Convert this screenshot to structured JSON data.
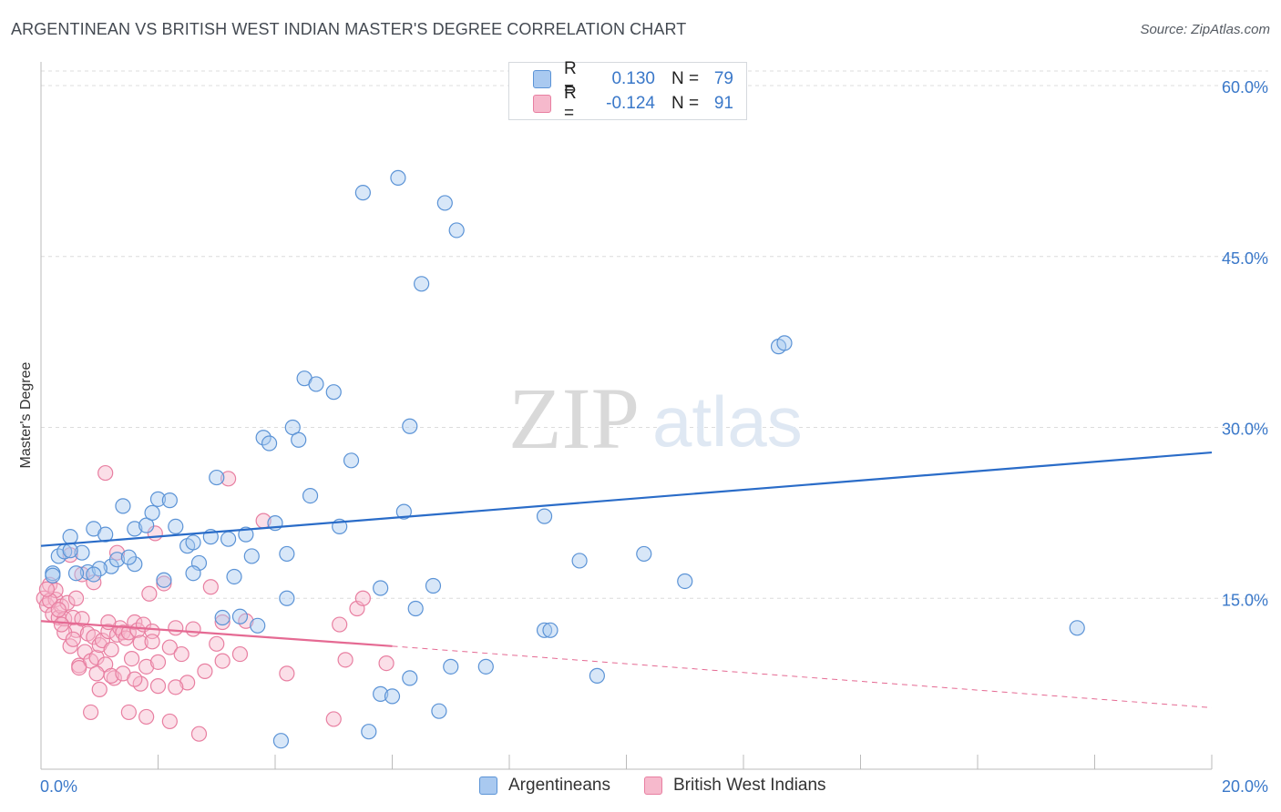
{
  "header": {
    "title": "ARGENTINEAN VS BRITISH WEST INDIAN MASTER'S DEGREE CORRELATION CHART",
    "source": "Source: ZipAtlas.com"
  },
  "watermark": {
    "zip": "ZIP",
    "atlas": "atlas"
  },
  "legend": {
    "rows": [
      {
        "r_label": "R =",
        "r_value": "0.130",
        "n_label": "N =",
        "n_value": "79"
      },
      {
        "r_label": "R =",
        "r_value": "-0.124",
        "n_label": "N =",
        "n_value": "91"
      }
    ]
  },
  "bottom_legend": {
    "a": "Argentineans",
    "b": "British West Indians"
  },
  "colors": {
    "blue_fill": "#a9c9f0",
    "blue_stroke": "#5b93d6",
    "blue_line": "#2a6cc8",
    "pink_fill": "#f6b9cc",
    "pink_stroke": "#e87fa1",
    "pink_line": "#e56a93",
    "tick_label": "#3a78c9",
    "grid": "#dcdcdc"
  },
  "chart_data": {
    "type": "scatter",
    "title": "ARGENTINEAN VS BRITISH WEST INDIAN MASTER'S DEGREE CORRELATION CHART",
    "xlabel": "",
    "ylabel": "Master's Degree",
    "xlim": [
      0,
      20
    ],
    "ylim": [
      0,
      60
    ],
    "x_tick_labels": [
      "0.0%",
      "20.0%"
    ],
    "y_ticks": [
      15,
      30,
      45,
      60
    ],
    "y_tick_labels": [
      "15.0%",
      "30.0%",
      "45.0%",
      "60.0%"
    ],
    "series": [
      {
        "name": "Argentineans",
        "R": 0.13,
        "N": 79,
        "trend": {
          "x0": 0,
          "y0": 19.6,
          "x1": 20,
          "y1": 27.8
        },
        "points": [
          [
            0.2,
            17.2
          ],
          [
            0.3,
            18.7
          ],
          [
            0.4,
            19.1
          ],
          [
            0.5,
            20.4
          ],
          [
            0.7,
            19.0
          ],
          [
            0.8,
            17.3
          ],
          [
            0.9,
            21.1
          ],
          [
            1.1,
            20.6
          ],
          [
            1.2,
            17.8
          ],
          [
            1.3,
            18.4
          ],
          [
            1.4,
            23.1
          ],
          [
            1.6,
            21.1
          ],
          [
            1.8,
            21.4
          ],
          [
            1.9,
            22.5
          ],
          [
            2.0,
            23.7
          ],
          [
            2.2,
            23.6
          ],
          [
            2.3,
            21.3
          ],
          [
            2.5,
            19.6
          ],
          [
            2.6,
            19.9
          ],
          [
            2.7,
            18.1
          ],
          [
            2.9,
            20.4
          ],
          [
            3.0,
            25.6
          ],
          [
            3.2,
            20.2
          ],
          [
            3.3,
            16.9
          ],
          [
            3.5,
            20.6
          ],
          [
            3.6,
            18.7
          ],
          [
            3.7,
            12.6
          ],
          [
            3.8,
            29.1
          ],
          [
            3.9,
            28.6
          ],
          [
            4.0,
            21.6
          ],
          [
            4.2,
            18.9
          ],
          [
            4.3,
            30.0
          ],
          [
            4.4,
            28.9
          ],
          [
            4.5,
            34.3
          ],
          [
            4.6,
            24.0
          ],
          [
            4.7,
            33.8
          ],
          [
            5.0,
            33.1
          ],
          [
            5.1,
            21.3
          ],
          [
            5.3,
            27.1
          ],
          [
            5.5,
            50.6
          ],
          [
            6.1,
            51.9
          ],
          [
            6.2,
            22.6
          ],
          [
            6.3,
            30.1
          ],
          [
            6.5,
            42.6
          ],
          [
            6.7,
            16.1
          ],
          [
            6.9,
            49.7
          ],
          [
            7.1,
            47.3
          ],
          [
            8.6,
            22.2
          ],
          [
            8.6,
            12.2
          ],
          [
            9.2,
            18.3
          ],
          [
            10.3,
            18.9
          ],
          [
            11.0,
            16.5
          ],
          [
            12.6,
            37.1
          ],
          [
            12.7,
            37.4
          ],
          [
            17.7,
            12.4
          ],
          [
            1.0,
            17.6
          ],
          [
            1.6,
            18.0
          ],
          [
            2.1,
            16.6
          ],
          [
            3.1,
            13.3
          ],
          [
            4.2,
            15.0
          ],
          [
            5.8,
            6.6
          ],
          [
            6.0,
            6.4
          ],
          [
            6.4,
            14.1
          ],
          [
            6.3,
            8.0
          ],
          [
            7.0,
            9.0
          ],
          [
            7.6,
            9.0
          ],
          [
            8.7,
            12.2
          ],
          [
            9.5,
            8.2
          ],
          [
            4.1,
            2.5
          ],
          [
            5.6,
            3.3
          ],
          [
            6.8,
            5.1
          ],
          [
            0.6,
            17.2
          ],
          [
            0.2,
            17.0
          ],
          [
            0.5,
            19.2
          ],
          [
            1.5,
            18.6
          ],
          [
            2.6,
            17.2
          ],
          [
            5.8,
            15.9
          ],
          [
            0.9,
            17.1
          ],
          [
            3.4,
            13.4
          ]
        ]
      },
      {
        "name": "British West Indians",
        "R": -0.124,
        "N": 91,
        "trend": {
          "x0": 0,
          "y0": 13.0,
          "x1": 6.0,
          "y1": 10.8,
          "dash_x1": 20,
          "dash_y1": 5.4
        },
        "points": [
          [
            0.05,
            15.0
          ],
          [
            0.1,
            14.4
          ],
          [
            0.15,
            16.2
          ],
          [
            0.2,
            13.6
          ],
          [
            0.25,
            14.9
          ],
          [
            0.3,
            13.3
          ],
          [
            0.35,
            14.3
          ],
          [
            0.4,
            13.2
          ],
          [
            0.45,
            14.6
          ],
          [
            0.5,
            10.8
          ],
          [
            0.55,
            13.3
          ],
          [
            0.6,
            12.2
          ],
          [
            0.65,
            9.1
          ],
          [
            0.7,
            17.1
          ],
          [
            0.75,
            10.3
          ],
          [
            0.8,
            11.9
          ],
          [
            0.85,
            9.5
          ],
          [
            0.9,
            11.6
          ],
          [
            0.95,
            9.8
          ],
          [
            1.0,
            10.9
          ],
          [
            1.05,
            11.3
          ],
          [
            1.1,
            9.2
          ],
          [
            1.15,
            12.1
          ],
          [
            1.2,
            10.5
          ],
          [
            1.25,
            8.0
          ],
          [
            1.3,
            11.8
          ],
          [
            1.35,
            12.4
          ],
          [
            1.4,
            12.0
          ],
          [
            1.45,
            11.5
          ],
          [
            1.5,
            12.0
          ],
          [
            1.55,
            9.7
          ],
          [
            1.6,
            12.9
          ],
          [
            1.65,
            12.2
          ],
          [
            1.7,
            11.1
          ],
          [
            1.75,
            12.7
          ],
          [
            1.8,
            9.0
          ],
          [
            1.85,
            15.4
          ],
          [
            1.9,
            12.1
          ],
          [
            1.95,
            20.7
          ],
          [
            2.0,
            7.3
          ],
          [
            2.1,
            16.3
          ],
          [
            2.2,
            10.7
          ],
          [
            2.3,
            12.4
          ],
          [
            2.4,
            10.1
          ],
          [
            2.5,
            7.6
          ],
          [
            2.6,
            12.3
          ],
          [
            2.7,
            3.1
          ],
          [
            2.9,
            16.0
          ],
          [
            3.0,
            11.0
          ],
          [
            3.1,
            12.9
          ],
          [
            3.2,
            25.5
          ],
          [
            3.4,
            10.1
          ],
          [
            3.5,
            13.0
          ],
          [
            3.8,
            21.8
          ],
          [
            4.2,
            8.4
          ],
          [
            5.0,
            4.4
          ],
          [
            5.1,
            12.7
          ],
          [
            5.2,
            9.6
          ],
          [
            5.4,
            14.1
          ],
          [
            5.5,
            15.0
          ],
          [
            5.9,
            9.3
          ],
          [
            1.1,
            26.0
          ],
          [
            1.3,
            19.0
          ],
          [
            0.9,
            16.4
          ],
          [
            0.7,
            13.2
          ],
          [
            0.4,
            12.0
          ],
          [
            0.6,
            15.0
          ],
          [
            0.5,
            18.8
          ],
          [
            1.0,
            7.0
          ],
          [
            1.2,
            8.2
          ],
          [
            1.4,
            8.4
          ],
          [
            1.7,
            7.5
          ],
          [
            2.2,
            4.2
          ],
          [
            1.8,
            4.6
          ],
          [
            1.5,
            5.0
          ],
          [
            0.85,
            5.0
          ],
          [
            0.25,
            15.7
          ],
          [
            0.15,
            14.8
          ],
          [
            0.1,
            15.8
          ],
          [
            0.3,
            14.0
          ],
          [
            0.55,
            11.4
          ],
          [
            0.65,
            8.9
          ],
          [
            0.95,
            8.4
          ],
          [
            1.15,
            12.9
          ],
          [
            1.6,
            7.9
          ],
          [
            2.0,
            9.4
          ],
          [
            2.3,
            7.2
          ],
          [
            2.8,
            8.6
          ],
          [
            3.1,
            9.5
          ],
          [
            1.9,
            11.2
          ],
          [
            0.35,
            12.7
          ]
        ]
      }
    ]
  }
}
